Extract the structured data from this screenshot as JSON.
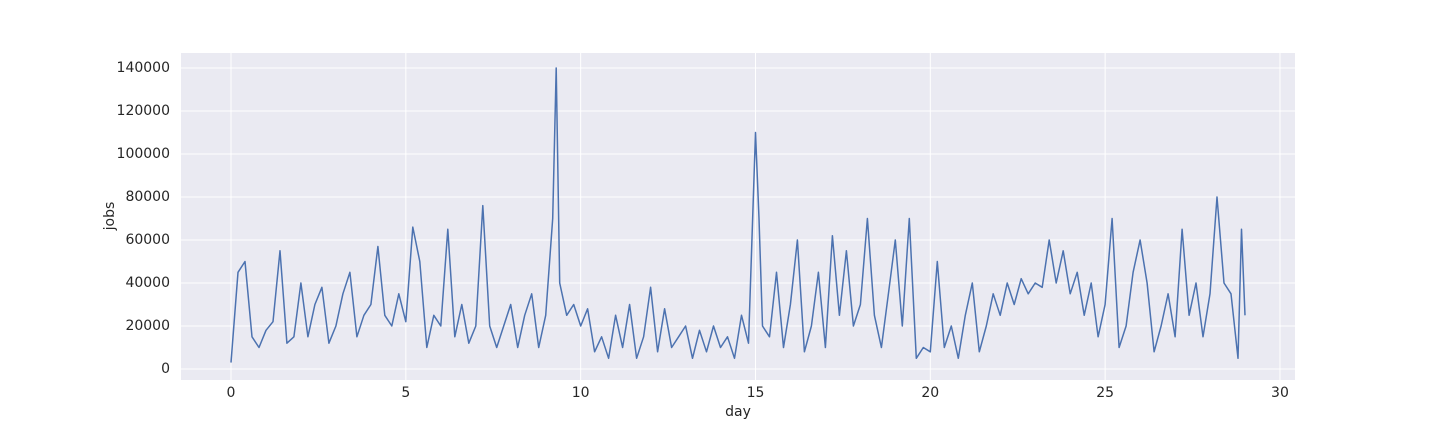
{
  "chart_data": {
    "type": "line",
    "xlabel": "day",
    "ylabel": "jobs",
    "x": [
      0,
      0.2,
      0.4,
      0.6,
      0.8,
      1.0,
      1.2,
      1.4,
      1.6,
      1.8,
      2.0,
      2.2,
      2.4,
      2.6,
      2.8,
      3.0,
      3.2,
      3.4,
      3.6,
      3.8,
      4.0,
      4.2,
      4.4,
      4.6,
      4.8,
      5.0,
      5.2,
      5.4,
      5.6,
      5.8,
      6.0,
      6.2,
      6.4,
      6.6,
      6.8,
      7.0,
      7.2,
      7.4,
      7.6,
      7.8,
      8.0,
      8.2,
      8.4,
      8.6,
      8.8,
      9.0,
      9.2,
      9.3,
      9.4,
      9.6,
      9.8,
      10.0,
      10.2,
      10.4,
      10.6,
      10.8,
      11.0,
      11.2,
      11.4,
      11.6,
      11.8,
      12.0,
      12.2,
      12.4,
      12.6,
      12.8,
      13.0,
      13.2,
      13.4,
      13.6,
      13.8,
      14.0,
      14.2,
      14.4,
      14.6,
      14.8,
      15.0,
      15.1,
      15.2,
      15.4,
      15.6,
      15.8,
      16.0,
      16.2,
      16.4,
      16.6,
      16.8,
      17.0,
      17.2,
      17.4,
      17.6,
      17.8,
      18.0,
      18.2,
      18.4,
      18.6,
      18.8,
      19.0,
      19.2,
      19.4,
      19.6,
      19.8,
      20.0,
      20.2,
      20.4,
      20.6,
      20.8,
      21.0,
      21.2,
      21.4,
      21.6,
      21.8,
      22.0,
      22.2,
      22.4,
      22.6,
      22.8,
      23.0,
      23.2,
      23.4,
      23.6,
      23.8,
      24.0,
      24.2,
      24.4,
      24.6,
      24.8,
      25.0,
      25.2,
      25.4,
      25.6,
      25.8,
      26.0,
      26.2,
      26.4,
      26.6,
      26.8,
      27.0,
      27.2,
      27.4,
      27.6,
      27.8,
      28.0,
      28.2,
      28.4,
      28.6,
      28.8,
      28.9,
      29.0
    ],
    "series": [
      {
        "color": "#4c72b0",
        "values": [
          3000,
          45000,
          50000,
          15000,
          10000,
          18000,
          22000,
          55000,
          12000,
          15000,
          40000,
          15000,
          30000,
          38000,
          12000,
          20000,
          35000,
          45000,
          15000,
          25000,
          30000,
          57000,
          25000,
          20000,
          35000,
          22000,
          66000,
          50000,
          10000,
          25000,
          20000,
          65000,
          15000,
          30000,
          12000,
          20000,
          76000,
          20000,
          10000,
          20000,
          30000,
          10000,
          25000,
          35000,
          10000,
          25000,
          70000,
          140000,
          40000,
          25000,
          30000,
          20000,
          28000,
          8000,
          15000,
          5000,
          25000,
          10000,
          30000,
          5000,
          15000,
          38000,
          8000,
          28000,
          10000,
          15000,
          20000,
          5000,
          18000,
          8000,
          20000,
          10000,
          15000,
          5000,
          25000,
          12000,
          110000,
          70000,
          20000,
          15000,
          45000,
          10000,
          30000,
          60000,
          8000,
          20000,
          45000,
          10000,
          62000,
          25000,
          55000,
          20000,
          30000,
          70000,
          25000,
          10000,
          35000,
          60000,
          20000,
          70000,
          5000,
          10000,
          8000,
          50000,
          10000,
          20000,
          5000,
          25000,
          40000,
          8000,
          20000,
          35000,
          25000,
          40000,
          30000,
          42000,
          35000,
          40000,
          38000,
          60000,
          40000,
          55000,
          35000,
          45000,
          25000,
          40000,
          15000,
          30000,
          70000,
          10000,
          20000,
          45000,
          60000,
          40000,
          8000,
          20000,
          35000,
          15000,
          65000,
          25000,
          40000,
          15000,
          35000,
          80000,
          40000,
          35000,
          5000,
          65000,
          25000
        ]
      }
    ],
    "xlim": [
      -1.43,
      30.43
    ],
    "xticks": [
      0,
      5,
      10,
      15,
      20,
      25,
      30
    ],
    "ylim": [
      -5100,
      147000
    ],
    "yticks": [
      0,
      20000,
      40000,
      60000,
      80000,
      100000,
      120000,
      140000
    ],
    "grid": true
  }
}
